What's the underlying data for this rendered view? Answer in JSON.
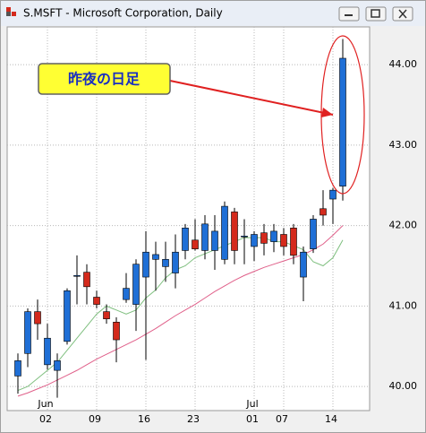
{
  "chart_data": {
    "type": "candlestick",
    "title": "S.MSFT - Microsoft Corporation, Daily",
    "categories": [
      null,
      null,
      null,
      "02",
      null,
      null,
      null,
      null,
      "09",
      null,
      null,
      null,
      null,
      "16",
      null,
      null,
      null,
      null,
      "23",
      null,
      null,
      null,
      null,
      null,
      "01",
      null,
      null,
      "07",
      null,
      null,
      null,
      null,
      "14",
      null
    ],
    "months": [
      null,
      null,
      null,
      "Jun",
      null,
      null,
      null,
      null,
      null,
      null,
      null,
      null,
      null,
      null,
      null,
      null,
      null,
      null,
      null,
      null,
      null,
      null,
      null,
      null,
      "Jul",
      null,
      null,
      null,
      null,
      null,
      null,
      null,
      null,
      null
    ],
    "open": [
      40.13,
      40.41,
      40.93,
      40.27,
      40.2,
      40.56,
      41.37,
      41.42,
      41.11,
      40.93,
      40.8,
      41.08,
      41.02,
      41.36,
      41.58,
      41.49,
      41.41,
      41.69,
      41.82,
      41.69,
      41.69,
      41.58,
      42.17,
      41.86,
      41.74,
      41.91,
      41.8,
      41.89,
      41.97,
      41.36,
      41.71,
      42.21,
      42.33,
      42.49
    ],
    "high": [
      40.41,
      40.97,
      41.08,
      40.78,
      40.41,
      41.22,
      41.63,
      41.52,
      41.19,
      41.02,
      40.86,
      41.41,
      41.58,
      41.93,
      41.8,
      41.8,
      41.89,
      42.02,
      42.08,
      42.13,
      42.13,
      42.3,
      42.22,
      42.08,
      41.93,
      42.02,
      42.02,
      41.97,
      42.02,
      41.74,
      42.13,
      42.44,
      42.47,
      44.32
    ],
    "low": [
      39.91,
      40.24,
      40.58,
      40.21,
      39.86,
      40.52,
      41.02,
      41.02,
      40.97,
      40.78,
      40.3,
      41.04,
      40.69,
      40.33,
      41.19,
      41.3,
      41.22,
      41.58,
      41.69,
      41.58,
      41.45,
      41.52,
      41.52,
      41.52,
      41.56,
      41.63,
      41.67,
      41.63,
      41.52,
      41.06,
      41.66,
      42.0,
      42.02,
      42.31
    ],
    "close": [
      40.32,
      40.93,
      40.78,
      40.6,
      40.32,
      41.19,
      41.38,
      41.24,
      41.02,
      40.84,
      40.58,
      41.22,
      41.52,
      41.67,
      41.64,
      41.58,
      41.67,
      41.97,
      41.71,
      42.02,
      41.93,
      42.24,
      41.69,
      41.87,
      41.89,
      41.78,
      41.93,
      41.74,
      41.63,
      41.67,
      42.08,
      42.13,
      42.44,
      44.08
    ],
    "up_color": "#1f6fd6",
    "down_color": "#d42a1c",
    "ma_lines": [
      {
        "color": "#7fbf7f",
        "values": [
          39.95,
          40.0,
          40.1,
          40.2,
          40.3,
          40.45,
          40.6,
          40.75,
          40.9,
          41.0,
          40.95,
          40.9,
          40.95,
          41.1,
          41.2,
          41.35,
          41.45,
          41.5,
          41.6,
          41.65,
          41.7,
          41.75,
          41.8,
          41.85,
          41.85,
          41.85,
          41.8,
          41.8,
          41.75,
          41.7,
          41.55,
          41.5,
          41.6,
          41.82
        ]
      },
      {
        "color": "#e0608a",
        "values": [
          39.88,
          39.92,
          39.97,
          40.02,
          40.08,
          40.14,
          40.2,
          40.27,
          40.34,
          40.4,
          40.46,
          40.52,
          40.58,
          40.65,
          40.72,
          40.8,
          40.88,
          40.95,
          41.02,
          41.1,
          41.18,
          41.25,
          41.32,
          41.38,
          41.43,
          41.48,
          41.52,
          41.56,
          41.6,
          41.64,
          41.7,
          41.77,
          41.88,
          42.0
        ]
      }
    ],
    "ylim": [
      39.7,
      44.47
    ],
    "yticks": [
      {
        "value": 40,
        "label": "40.00"
      },
      {
        "value": 41,
        "label": "41.00"
      },
      {
        "value": 42,
        "label": "42.00"
      },
      {
        "value": 43,
        "label": "43.00"
      },
      {
        "value": 44,
        "label": "44.00"
      }
    ],
    "grid": true,
    "annotation": "昨夜の日足"
  }
}
